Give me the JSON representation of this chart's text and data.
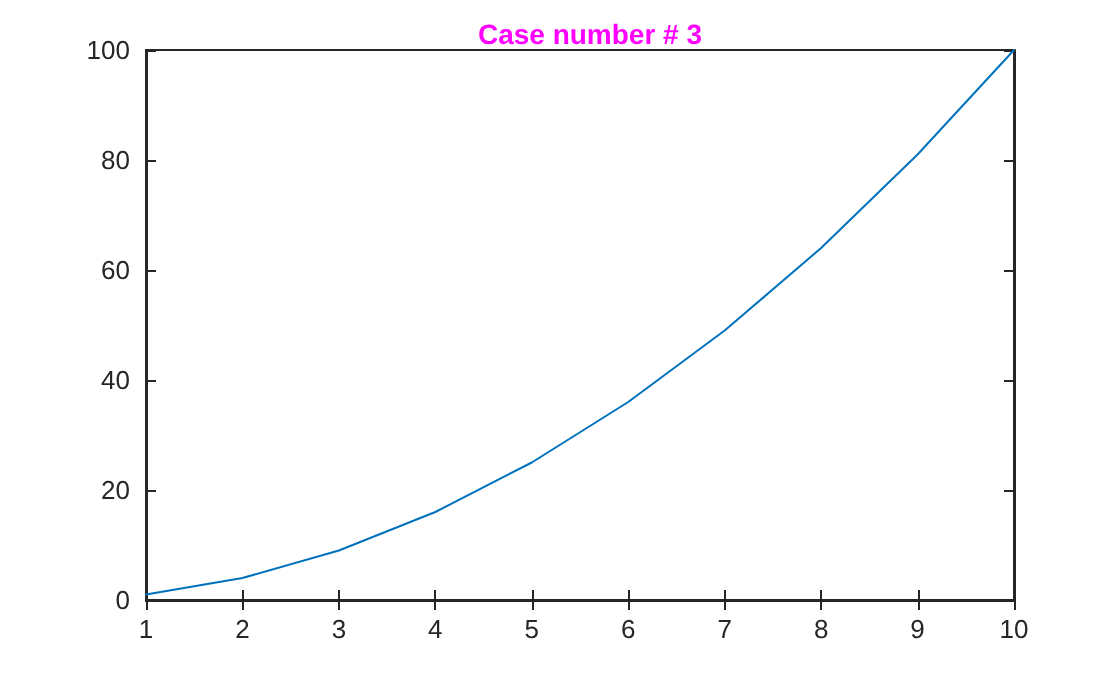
{
  "chart_data": {
    "type": "line",
    "title": "Case number # 3",
    "x": [
      1,
      2,
      3,
      4,
      5,
      6,
      7,
      8,
      9,
      10
    ],
    "series": [
      {
        "color": "#0072bd",
        "values": [
          1,
          4,
          9,
          16,
          25,
          36,
          49,
          64,
          81,
          100
        ]
      }
    ],
    "xlim": [
      1,
      10
    ],
    "xticks": [
      1,
      2,
      3,
      4,
      5,
      6,
      7,
      8,
      9,
      10
    ],
    "ylim": [
      0,
      100
    ],
    "yticks": [
      0,
      20,
      40,
      60,
      80,
      100
    ],
    "grid": false,
    "marker": "none",
    "line_style": "solid"
  }
}
